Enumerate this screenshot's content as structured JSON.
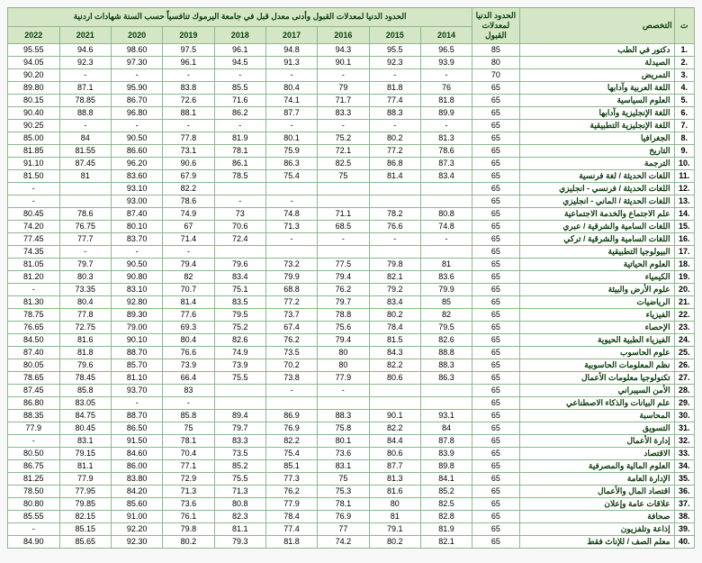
{
  "colors": {
    "header_bg": "#d4e6c5",
    "border": "#8bb98c",
    "header_text": "#0b3d0b"
  },
  "fontsize": 9,
  "columns": {
    "id": "ت",
    "spec": "التخصص",
    "min": "الحدود الدنيا لمعدلات القبول",
    "years_title": "الحدود الدنيا لمعدلات القبول وأدنى معدل قبل في جامعة اليرموك تنافسياً حسب السنة  شهادات اردنية",
    "years": [
      "2014",
      "2015",
      "2016",
      "2017",
      "2018",
      "2019",
      "2020",
      "2021",
      "2022"
    ]
  },
  "rows": [
    {
      "id": ".1",
      "spec": "دكتور في الطب",
      "min": "85",
      "y2014": "96.5",
      "y2015": "95.5",
      "y2016": "94.3",
      "y2017": "94.8",
      "y2018": "96.1",
      "y2019": "97.5",
      "y2020": "98.60",
      "y2021": "94.6",
      "y2022": "95.55"
    },
    {
      "id": ".2",
      "spec": "الصيدلة",
      "min": "80",
      "y2014": "93.9",
      "y2015": "92.3",
      "y2016": "90.1",
      "y2017": "91.3",
      "y2018": "94.5",
      "y2019": "96.1",
      "y2020": "97.30",
      "y2021": "92.3",
      "y2022": "94.05"
    },
    {
      "id": ".3",
      "spec": "التمريض",
      "min": "70",
      "y2014": "-",
      "y2015": "-",
      "y2016": "-",
      "y2017": "-",
      "y2018": "-",
      "y2019": "-",
      "y2020": "-",
      "y2021": "-",
      "y2022": "90.20"
    },
    {
      "id": ".4",
      "spec": "اللغة العربية وآدابها",
      "min": "65",
      "y2014": "76",
      "y2015": "81.8",
      "y2016": "79",
      "y2017": "80.4",
      "y2018": "85.5",
      "y2019": "83.8",
      "y2020": "95.90",
      "y2021": "87.1",
      "y2022": "89.80"
    },
    {
      "id": ".5",
      "spec": "العلوم السياسية",
      "min": "65",
      "y2014": "81.8",
      "y2015": "77.4",
      "y2016": "71.7",
      "y2017": "74.1",
      "y2018": "71.6",
      "y2019": "72.6",
      "y2020": "86.70",
      "y2021": "78.85",
      "y2022": "80.15"
    },
    {
      "id": ".6",
      "spec": "اللغة الإنجليزية وآدابها",
      "min": "65",
      "y2014": "89.9",
      "y2015": "88.3",
      "y2016": "83.3",
      "y2017": "87.7",
      "y2018": "86.2",
      "y2019": "88.1",
      "y2020": "96.80",
      "y2021": "88.8",
      "y2022": "90.40"
    },
    {
      "id": ".7",
      "spec": "اللغة الإنجليزية التطبيقية",
      "min": "65",
      "y2014": "-",
      "y2015": "-",
      "y2016": "-",
      "y2017": "-",
      "y2018": "-",
      "y2019": "-",
      "y2020": "-",
      "y2021": "-",
      "y2022": "90.25"
    },
    {
      "id": ".8",
      "spec": "الجغرافيا",
      "min": "65",
      "y2014": "81.3",
      "y2015": "80.2",
      "y2016": "75.2",
      "y2017": "80.1",
      "y2018": "81.9",
      "y2019": "77.8",
      "y2020": "90.50",
      "y2021": "84",
      "y2022": "85.00"
    },
    {
      "id": ".9",
      "spec": "التاريخ",
      "min": "65",
      "y2014": "78.6",
      "y2015": "77.2",
      "y2016": "72.1",
      "y2017": "75.9",
      "y2018": "78.1",
      "y2019": "73.1",
      "y2020": "86.60",
      "y2021": "81.55",
      "y2022": "81.85"
    },
    {
      "id": ".10",
      "spec": "الترجمة",
      "min": "65",
      "y2014": "87.3",
      "y2015": "86.8",
      "y2016": "82.5",
      "y2017": "86.3",
      "y2018": "86.1",
      "y2019": "90.6",
      "y2020": "96.20",
      "y2021": "87.45",
      "y2022": "91.10"
    },
    {
      "id": ".11",
      "spec": "اللغات الحديثة / لغة فرنسية",
      "min": "65",
      "y2014": "83.4",
      "y2015": "81.4",
      "y2016": "75",
      "y2017": "75.4",
      "y2018": "78.5",
      "y2019": "67.9",
      "y2020": "83.60",
      "y2021": "81",
      "y2022": "81.50"
    },
    {
      "id": ".12",
      "spec": "اللغات الحديثة / فرنسي - انجليزي",
      "min": "65",
      "y2014": "",
      "y2015": "",
      "y2016": "",
      "y2017": "",
      "y2018": "",
      "y2019": "82.2",
      "y2020": "93.10",
      "y2021": "",
      "y2022": "-"
    },
    {
      "id": ".13",
      "spec": "اللغات الحديثة / الماني - انجليزي",
      "min": "65",
      "y2014": "",
      "y2015": "",
      "y2016": "",
      "y2017": "-",
      "y2018": "-",
      "y2019": "78.6",
      "y2020": "93.00",
      "y2021": "",
      "y2022": "-"
    },
    {
      "id": ".14",
      "spec": "علم الاجتماع والخدمة الاجتماعية",
      "min": "65",
      "y2014": "80.8",
      "y2015": "78.2",
      "y2016": "71.1",
      "y2017": "74.8",
      "y2018": "73",
      "y2019": "74.9",
      "y2020": "87.40",
      "y2021": "78.6",
      "y2022": "80.45"
    },
    {
      "id": ".15",
      "spec": "اللغات السامية والشرقية / عبري",
      "min": "65",
      "y2014": "74.8",
      "y2015": "76.6",
      "y2016": "68.5",
      "y2017": "71.3",
      "y2018": "70.6",
      "y2019": "67",
      "y2020": "80.10",
      "y2021": "76.75",
      "y2022": "74.20"
    },
    {
      "id": ".16",
      "spec": "اللغات السامية والشرقية / تركي",
      "min": "65",
      "y2014": "-",
      "y2015": "-",
      "y2016": "-",
      "y2017": "-",
      "y2018": "72.4",
      "y2019": "71.4",
      "y2020": "83.70",
      "y2021": "77.7",
      "y2022": "77.45"
    },
    {
      "id": ".17",
      "spec": "البيولوجيا التطبيقية",
      "min": "65",
      "y2014": "",
      "y2015": "",
      "y2016": "",
      "y2017": "",
      "y2018": "",
      "y2019": "-",
      "y2020": "-",
      "y2021": "-",
      "y2022": "74.35"
    },
    {
      "id": ".18",
      "spec": "العلوم الحياتية",
      "min": "65",
      "y2014": "81",
      "y2015": "79.8",
      "y2016": "77.5",
      "y2017": "73.2",
      "y2018": "79.6",
      "y2019": "79.4",
      "y2020": "90.50",
      "y2021": "79.7",
      "y2022": "81.05"
    },
    {
      "id": ".19",
      "spec": "الكيمياء",
      "min": "65",
      "y2014": "83.6",
      "y2015": "82.1",
      "y2016": "79.4",
      "y2017": "79.9",
      "y2018": "83.4",
      "y2019": "82",
      "y2020": "90.80",
      "y2021": "80.3",
      "y2022": "81.20"
    },
    {
      "id": ".20",
      "spec": "علوم الأرض والبيئة",
      "min": "65",
      "y2014": "79.9",
      "y2015": "79.2",
      "y2016": "76.2",
      "y2017": "68.8",
      "y2018": "75.1",
      "y2019": "70.7",
      "y2020": "83.10",
      "y2021": "73.35",
      "y2022": "-"
    },
    {
      "id": ".21",
      "spec": "الرياضيات",
      "min": "65",
      "y2014": "85",
      "y2015": "83.4",
      "y2016": "79.7",
      "y2017": "77.2",
      "y2018": "83.5",
      "y2019": "81.4",
      "y2020": "92.80",
      "y2021": "80.4",
      "y2022": "81.30"
    },
    {
      "id": ".22",
      "spec": "الفيزياء",
      "min": "65",
      "y2014": "82",
      "y2015": "80.2",
      "y2016": "78.8",
      "y2017": "73.7",
      "y2018": "79.5",
      "y2019": "77.6",
      "y2020": "89.30",
      "y2021": "77.8",
      "y2022": "78.75"
    },
    {
      "id": ".23",
      "spec": "الإحصاء",
      "min": "65",
      "y2014": "79.5",
      "y2015": "78.4",
      "y2016": "75.6",
      "y2017": "67.4",
      "y2018": "75.2",
      "y2019": "69.3",
      "y2020": "79.00",
      "y2021": "72.75",
      "y2022": "76.65"
    },
    {
      "id": ".24",
      "spec": "الفيزياء الطبية الحيوية",
      "min": "65",
      "y2014": "82.6",
      "y2015": "81.5",
      "y2016": "79.4",
      "y2017": "76.2",
      "y2018": "82.6",
      "y2019": "80.4",
      "y2020": "90.10",
      "y2021": "81.6",
      "y2022": "84.50"
    },
    {
      "id": ".25",
      "spec": "علوم الحاسوب",
      "min": "65",
      "y2014": "88.8",
      "y2015": "84.3",
      "y2016": "80",
      "y2017": "73.5",
      "y2018": "74.9",
      "y2019": "76.6",
      "y2020": "88.70",
      "y2021": "81.8",
      "y2022": "87.40"
    },
    {
      "id": ".26",
      "spec": "نظم المعلومات الحاسوبية",
      "min": "65",
      "y2014": "88.3",
      "y2015": "82.2",
      "y2016": "80",
      "y2017": "70.2",
      "y2018": "73.9",
      "y2019": "73.9",
      "y2020": "85.70",
      "y2021": "79.6",
      "y2022": "80.05"
    },
    {
      "id": ".27",
      "spec": "تكنولوجيا معلومات الأعمال",
      "min": "65",
      "y2014": "86.3",
      "y2015": "80.6",
      "y2016": "77.9",
      "y2017": "73.8",
      "y2018": "75.5",
      "y2019": "66.4",
      "y2020": "81.10",
      "y2021": "78.45",
      "y2022": "78.65"
    },
    {
      "id": ".28",
      "spec": "الأمن السيبراني",
      "min": "65",
      "y2014": "",
      "y2015": "",
      "y2016": "-",
      "y2017": "-",
      "y2018": "",
      "y2019": "83",
      "y2020": "93.70",
      "y2021": "85.8",
      "y2022": "87.45"
    },
    {
      "id": ".29",
      "spec": "علم البيانات والذكاء الاصطناعي",
      "min": "65",
      "y2014": "",
      "y2015": "",
      "y2016": "",
      "y2017": "",
      "y2018": "",
      "y2019": "-",
      "y2020": "-",
      "y2021": "83.05",
      "y2022": "86.80"
    },
    {
      "id": ".30",
      "spec": "المحاسبة",
      "min": "65",
      "y2014": "93.1",
      "y2015": "90.1",
      "y2016": "88.3",
      "y2017": "86.9",
      "y2018": "89.4",
      "y2019": "85.8",
      "y2020": "88.70",
      "y2021": "84.75",
      "y2022": "88.35"
    },
    {
      "id": ".31",
      "spec": "التسويق",
      "min": "65",
      "y2014": "84",
      "y2015": "82.2",
      "y2016": "75.8",
      "y2017": "76.9",
      "y2018": "79.7",
      "y2019": "75",
      "y2020": "86.50",
      "y2021": "80.45",
      "y2022": "77.9"
    },
    {
      "id": ".32",
      "spec": "إدارة الأعمال",
      "min": "65",
      "y2014": "87.8",
      "y2015": "84.4",
      "y2016": "80.1",
      "y2017": "82.2",
      "y2018": "83.3",
      "y2019": "78.1",
      "y2020": "91.50",
      "y2021": "83.1",
      "y2022": "-"
    },
    {
      "id": ".33",
      "spec": "الاقتصاد",
      "min": "65",
      "y2014": "83.9",
      "y2015": "80.6",
      "y2016": "73.6",
      "y2017": "75.4",
      "y2018": "73.5",
      "y2019": "70.4",
      "y2020": "84.60",
      "y2021": "79.15",
      "y2022": "80.50"
    },
    {
      "id": ".34",
      "spec": "العلوم المالية والمصرفية",
      "min": "65",
      "y2014": "89.8",
      "y2015": "87.7",
      "y2016": "83.1",
      "y2017": "85.1",
      "y2018": "85.2",
      "y2019": "77.1",
      "y2020": "86.00",
      "y2021": "81.1",
      "y2022": "86.75"
    },
    {
      "id": ".35",
      "spec": "الإدارة العامة",
      "min": "65",
      "y2014": "84.1",
      "y2015": "81.3",
      "y2016": "75",
      "y2017": "77.3",
      "y2018": "75.5",
      "y2019": "72.9",
      "y2020": "83.80",
      "y2021": "77.9",
      "y2022": "81.25"
    },
    {
      "id": ".36",
      "spec": "اقتصاد المال والأعمال",
      "min": "65",
      "y2014": "85.2",
      "y2015": "81.6",
      "y2016": "75.3",
      "y2017": "76.2",
      "y2018": "71.3",
      "y2019": "71.3",
      "y2020": "84.20",
      "y2021": "77.95",
      "y2022": "78.50"
    },
    {
      "id": ".37",
      "spec": "علاقات عامة وإعلان",
      "min": "65",
      "y2014": "82.5",
      "y2015": "80",
      "y2016": "78.1",
      "y2017": "77.9",
      "y2018": "80.8",
      "y2019": "73.6",
      "y2020": "85.60",
      "y2021": "79.85",
      "y2022": "80.80"
    },
    {
      "id": ".38",
      "spec": "صحافة",
      "min": "65",
      "y2014": "82.8",
      "y2015": "81",
      "y2016": "76.9",
      "y2017": "78.4",
      "y2018": "82.3",
      "y2019": "76.1",
      "y2020": "91.00",
      "y2021": "82.15",
      "y2022": "85.55"
    },
    {
      "id": ".39",
      "spec": "إذاعة وتلفزيون",
      "min": "65",
      "y2014": "81.9",
      "y2015": "79.1",
      "y2016": "77",
      "y2017": "77.4",
      "y2018": "81.1",
      "y2019": "79.8",
      "y2020": "92.20",
      "y2021": "85.15",
      "y2022": "-"
    },
    {
      "id": ".40",
      "spec": "معلم الصف / للإناث فقط",
      "min": "65",
      "y2014": "82.1",
      "y2015": "80.2",
      "y2016": "74.2",
      "y2017": "81.8",
      "y2018": "79.3",
      "y2019": "80.2",
      "y2020": "92.30",
      "y2021": "85.65",
      "y2022": "84.90"
    }
  ]
}
